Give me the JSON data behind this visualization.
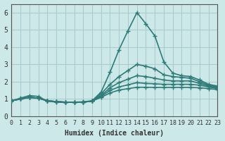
{
  "xlabel": "Humidex (Indice chaleur)",
  "ylabel": "",
  "xlim": [
    0,
    23
  ],
  "ylim": [
    0,
    6.5
  ],
  "xticks": [
    0,
    1,
    2,
    3,
    4,
    5,
    6,
    7,
    8,
    9,
    10,
    11,
    12,
    13,
    14,
    15,
    16,
    17,
    18,
    19,
    20,
    21,
    22,
    23
  ],
  "yticks": [
    0,
    1,
    2,
    3,
    4,
    5,
    6
  ],
  "bg_color": "#cce8e8",
  "grid_color": "#aacccc",
  "line_color": "#2e7b78",
  "line_width": 1.2,
  "marker": "+",
  "marker_size": 4,
  "lines": [
    [
      0,
      1,
      2,
      3,
      4,
      5,
      6,
      7,
      8,
      9,
      10,
      11,
      12,
      13,
      14,
      15,
      16,
      17,
      18,
      19,
      20,
      21,
      22,
      23
    ],
    [
      0.9,
      1.05,
      1.2,
      1.15,
      0.88,
      0.82,
      0.8,
      0.82,
      0.84,
      0.9,
      1.4,
      2.55,
      3.85,
      4.95,
      6.0,
      5.35,
      4.65,
      3.15,
      2.5,
      2.35,
      2.3,
      2.1,
      1.85,
      1.75
    ],
    [
      0.9,
      1.0,
      1.1,
      1.05,
      0.9,
      0.85,
      0.82,
      0.82,
      0.82,
      0.88,
      1.3,
      1.85,
      2.3,
      2.65,
      3.0,
      2.9,
      2.75,
      2.4,
      2.3,
      2.25,
      2.2,
      2.0,
      1.8,
      1.7
    ],
    [
      0.9,
      1.0,
      1.1,
      1.05,
      0.9,
      0.85,
      0.82,
      0.82,
      0.82,
      0.88,
      1.2,
      1.65,
      1.95,
      2.15,
      2.35,
      2.3,
      2.2,
      2.1,
      2.05,
      2.05,
      2.05,
      1.9,
      1.75,
      1.65
    ],
    [
      0.9,
      1.0,
      1.1,
      1.05,
      0.9,
      0.85,
      0.82,
      0.82,
      0.82,
      0.88,
      1.15,
      1.5,
      1.7,
      1.82,
      1.95,
      1.9,
      1.88,
      1.85,
      1.85,
      1.85,
      1.85,
      1.8,
      1.7,
      1.6
    ],
    [
      0.9,
      1.0,
      1.1,
      1.05,
      0.9,
      0.85,
      0.82,
      0.82,
      0.82,
      0.88,
      1.1,
      1.35,
      1.52,
      1.6,
      1.68,
      1.68,
      1.67,
      1.67,
      1.67,
      1.67,
      1.67,
      1.65,
      1.6,
      1.55
    ]
  ]
}
